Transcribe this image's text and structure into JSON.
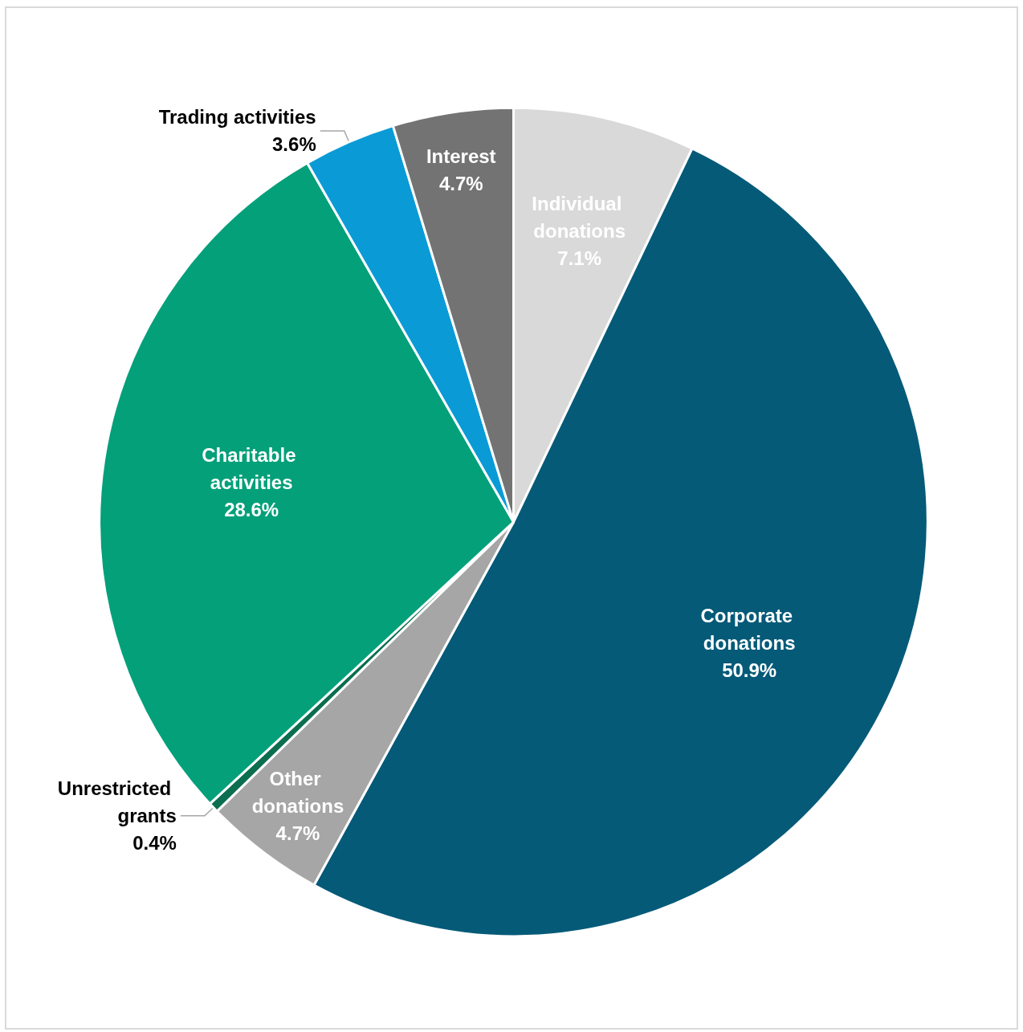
{
  "chart_data": {
    "type": "pie",
    "categories": [
      "Individual donations",
      "Corporate donations",
      "Other donations",
      "Unrestricted grants",
      "Charitable activities",
      "Trading activities",
      "Interest"
    ],
    "values": [
      7.1,
      50.9,
      4.7,
      0.4,
      28.6,
      3.6,
      4.7
    ],
    "value_labels": [
      "7.1%",
      "50.9%",
      "4.7%",
      "0.4%",
      "28.6%",
      "3.6%",
      "4.7%"
    ],
    "colors": [
      "#d9d9d9",
      "#055a78",
      "#a6a6a6",
      "#0b6e4f",
      "#03a07a",
      "#0a9bd6",
      "#737373"
    ],
    "legend": false
  }
}
